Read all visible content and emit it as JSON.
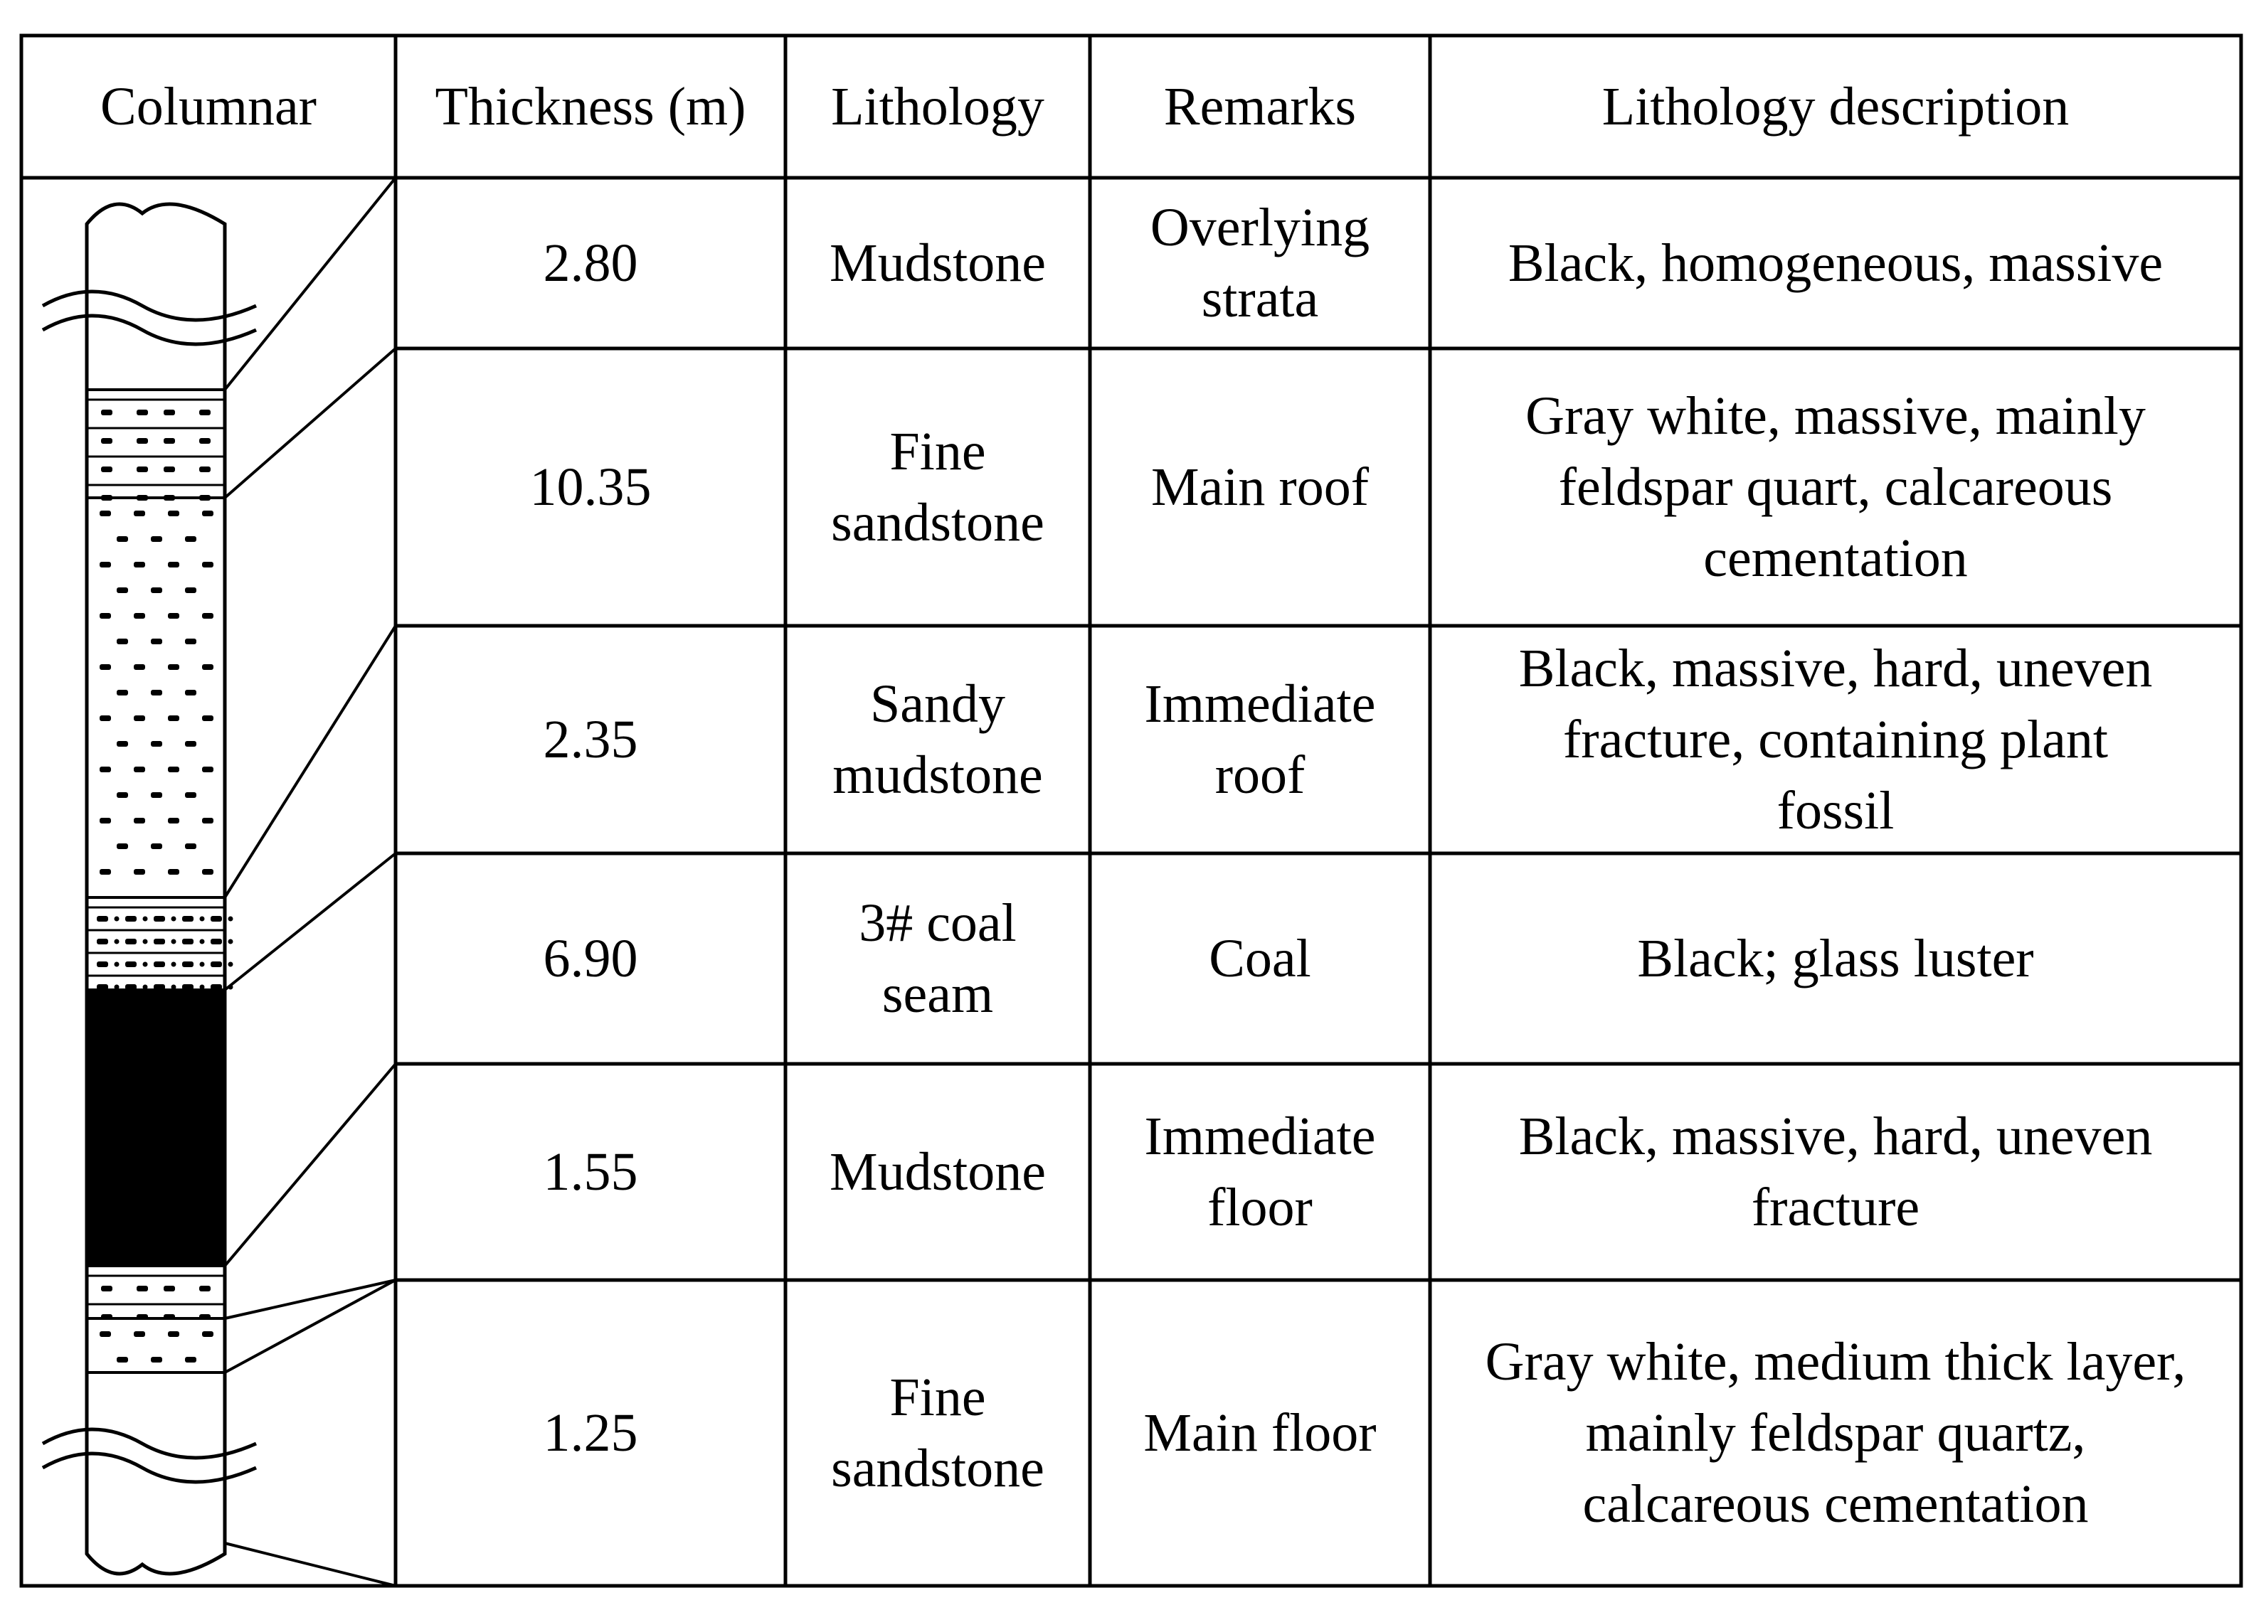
{
  "headers": {
    "columnar": "Columnar",
    "thickness": "Thickness (m)",
    "lithology": "Lithology",
    "remarks": "Remarks",
    "description": "Lithology description"
  },
  "rows": [
    {
      "thickness": "2.80",
      "lithology": "Mudstone",
      "remarks": "Overlying strata",
      "description": "Black, homogeneous, massive",
      "pattern": "none"
    },
    {
      "thickness": "10.35",
      "lithology": "Fine sandstone",
      "remarks": "Main roof",
      "description": "Gray white, massive, mainly feldspar quart, calcareous cementation",
      "pattern": "dash-dots"
    },
    {
      "thickness": "2.35",
      "lithology": "Sandy mudstone",
      "remarks": "Immediate roof",
      "description": "Black, massive, hard, uneven fracture, containing plant fossil",
      "pattern": "dash-dot-lines"
    },
    {
      "thickness": "6.90",
      "lithology": "3# coal seam",
      "remarks": "Coal",
      "description": "Black; glass luster",
      "pattern": "solid-black"
    },
    {
      "thickness": "1.55",
      "lithology": "Mudstone",
      "remarks": "Immediate floor",
      "description": "Black, massive, hard, uneven fracture",
      "pattern": "dash-lines"
    },
    {
      "thickness": "1.25",
      "lithology": "Fine sandstone",
      "remarks": "Main floor",
      "description": "Gray white, medium thick layer, mainly feldspar quartz, calcareous cementation",
      "pattern": "dash-dots"
    }
  ],
  "colors": {
    "line": "#000000",
    "background": "#ffffff",
    "coal": "#000000"
  }
}
